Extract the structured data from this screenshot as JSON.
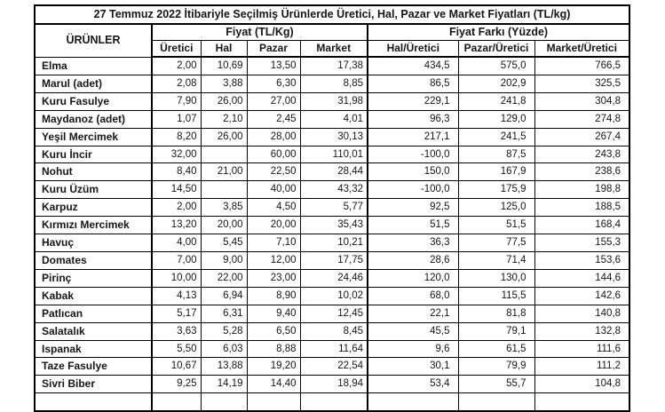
{
  "title": "27 Temmuz 2022 İtibariyle Seçilmiş Ürünlerde Üretici, Hal, Pazar ve Market Fiyatları (TL/kg)",
  "table": {
    "products_header": "ÜRÜNLER",
    "price_group_label": "Fiyat (TL/Kg)",
    "diff_group_label": "Fiyat Farkı (Yüzde)",
    "price_columns": [
      "Üretici",
      "Hal",
      "Pazar",
      "Market"
    ],
    "diff_columns": [
      "Hal/Üretici",
      "Pazar/Üretici",
      "Market/Üretici"
    ],
    "rows": [
      {
        "product": "Elma",
        "values": [
          "2,00",
          "10,69",
          "13,50",
          "17,38",
          "434,5",
          "575,0",
          "766,5"
        ]
      },
      {
        "product": "Marul (adet)",
        "values": [
          "2,08",
          "3,88",
          "6,30",
          "8,85",
          "86,5",
          "202,9",
          "325,5"
        ]
      },
      {
        "product": "Kuru Fasulye",
        "values": [
          "7,90",
          "26,00",
          "27,00",
          "31,98",
          "229,1",
          "241,8",
          "304,8"
        ]
      },
      {
        "product": "Maydanoz (adet)",
        "values": [
          "1,07",
          "2,10",
          "2,45",
          "4,01",
          "96,3",
          "129,0",
          "274,8"
        ]
      },
      {
        "product": "Yeşil Mercimek",
        "values": [
          "8,20",
          "26,00",
          "28,00",
          "30,13",
          "217,1",
          "241,5",
          "267,4"
        ]
      },
      {
        "product": "Kuru İncir",
        "values": [
          "32,00",
          "",
          "60,00",
          "110,01",
          "-100,0",
          "87,5",
          "243,8"
        ]
      },
      {
        "product": "Nohut",
        "values": [
          "8,40",
          "21,00",
          "22,50",
          "28,44",
          "150,0",
          "167,9",
          "238,6"
        ]
      },
      {
        "product": "Kuru Üzüm",
        "values": [
          "14,50",
          "",
          "40,00",
          "43,32",
          "-100,0",
          "175,9",
          "198,8"
        ]
      },
      {
        "product": "Karpuz",
        "values": [
          "2,00",
          "3,85",
          "4,50",
          "5,77",
          "92,5",
          "125,0",
          "188,5"
        ]
      },
      {
        "product": "Kırmızı Mercimek",
        "values": [
          "13,20",
          "20,00",
          "20,00",
          "35,43",
          "51,5",
          "51,5",
          "168,4"
        ]
      },
      {
        "product": "Havuç",
        "values": [
          "4,00",
          "5,45",
          "7,10",
          "10,21",
          "36,3",
          "77,5",
          "155,3"
        ]
      },
      {
        "product": "Domates",
        "values": [
          "7,00",
          "9,00",
          "12,00",
          "17,75",
          "28,6",
          "71,4",
          "153,6"
        ]
      },
      {
        "product": "Pirinç",
        "values": [
          "10,00",
          "22,00",
          "23,00",
          "24,46",
          "120,0",
          "130,0",
          "144,6"
        ]
      },
      {
        "product": "Kabak",
        "values": [
          "4,13",
          "6,94",
          "8,90",
          "10,02",
          "68,0",
          "115,5",
          "142,6"
        ]
      },
      {
        "product": "Patlıcan",
        "values": [
          "5,17",
          "6,31",
          "9,40",
          "12,45",
          "22,1",
          "81,8",
          "140,8"
        ]
      },
      {
        "product": "Salatalık",
        "values": [
          "3,63",
          "5,28",
          "6,50",
          "8,45",
          "45,5",
          "79,1",
          "132,8"
        ]
      },
      {
        "product": "Ispanak",
        "values": [
          "5,50",
          "6,03",
          "8,88",
          "11,64",
          "9,6",
          "61,5",
          "111,6"
        ]
      },
      {
        "product": "Taze Fasulye",
        "values": [
          "10,67",
          "13,88",
          "19,20",
          "22,54",
          "30,1",
          "79,9",
          "111,2"
        ]
      },
      {
        "product": "Sivri Biber",
        "values": [
          "9,25",
          "14,19",
          "14,40",
          "18,94",
          "53,4",
          "55,7",
          "104,8"
        ]
      }
    ]
  }
}
